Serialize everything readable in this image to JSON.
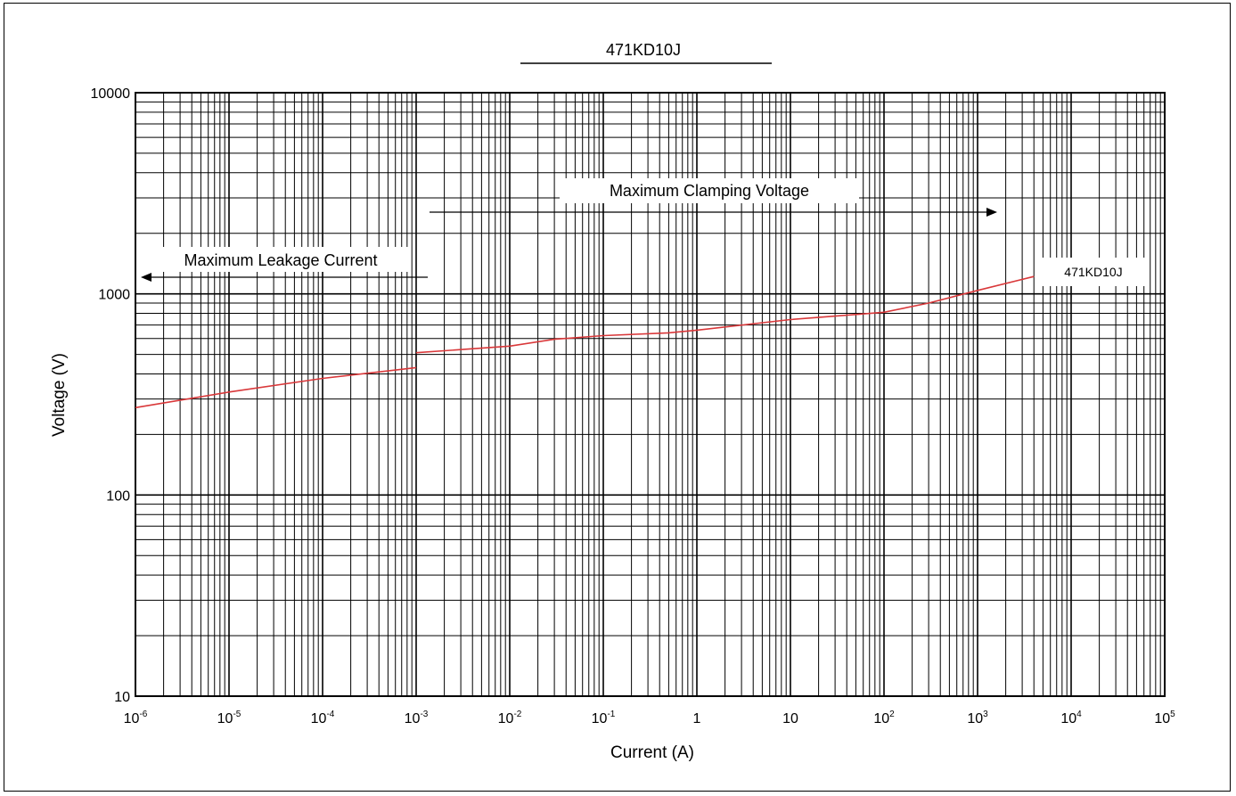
{
  "chart_data": {
    "type": "line",
    "title": "471KD10J",
    "xlabel": "Current (A)",
    "ylabel": "Voltage (V)",
    "xscale": "log",
    "yscale": "log",
    "xlim": [
      1e-06,
      100000
    ],
    "ylim": [
      10,
      10000
    ],
    "grid": true,
    "x_tick_labels": [
      {
        "base": "10",
        "exp": "-6"
      },
      {
        "base": "10",
        "exp": "-5"
      },
      {
        "base": "10",
        "exp": "-4"
      },
      {
        "base": "10",
        "exp": "-3"
      },
      {
        "base": "10",
        "exp": "-2"
      },
      {
        "base": "10",
        "exp": "-1"
      },
      {
        "base": "1",
        "exp": ""
      },
      {
        "base": "10",
        "exp": ""
      },
      {
        "base": "10",
        "exp": "2"
      },
      {
        "base": "10",
        "exp": "3"
      },
      {
        "base": "10",
        "exp": "4"
      },
      {
        "base": "10",
        "exp": "5"
      }
    ],
    "y_tick_labels": [
      "10",
      "100",
      "1000",
      "10000"
    ],
    "annotations": {
      "leakage": "Maximum Leakage Current",
      "clamping": "Maximum Clamping Voltage"
    },
    "series": [
      {
        "name": "471KD10J",
        "color": "#d9383a",
        "segments": [
          {
            "label": "Maximum Leakage Current",
            "x": [
              1e-06,
              1e-05,
              0.0001,
              0.001
            ],
            "y": [
              272,
              325,
              380,
              430
            ]
          },
          {
            "label": "Maximum Clamping Voltage",
            "x": [
              0.001,
              0.01,
              0.03,
              0.1,
              0.5,
              1,
              10,
              50,
              100,
              300,
              1000,
              4000
            ],
            "y": [
              510,
              550,
              595,
              620,
              640,
              660,
              745,
              790,
              810,
              900,
              1040,
              1220
            ]
          }
        ]
      }
    ]
  }
}
